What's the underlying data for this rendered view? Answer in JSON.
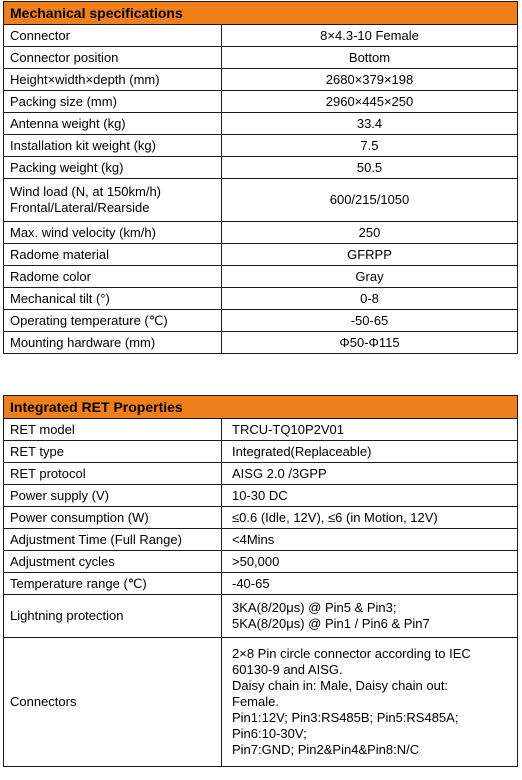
{
  "mechanical": {
    "title": "Mechanical specifications",
    "rows": [
      {
        "label": "Connector",
        "value": "8×4.3-10 Female"
      },
      {
        "label": "Connector position",
        "value": "Bottom"
      },
      {
        "label": "Height×width×depth (mm)",
        "value": "2680×379×198"
      },
      {
        "label": "Packing size (mm)",
        "value": "2960×445×250"
      },
      {
        "label": "Antenna weight (kg)",
        "value": "33.4"
      },
      {
        "label": "Installation kit weight (kg)",
        "value": "7.5"
      },
      {
        "label": "Packing weight (kg)",
        "value": "50.5"
      },
      {
        "label_lines": [
          "Wind load (N, at 150km/h)",
          "Frontal/Lateral/Rearside"
        ],
        "value": "600/215/1050"
      },
      {
        "label": "Max. wind velocity (km/h)",
        "value": "250"
      },
      {
        "label": "Radome material",
        "value": "GFRPP"
      },
      {
        "label": "Radome color",
        "value": "Gray"
      },
      {
        "label": "Mechanical tilt (°)",
        "value": "0-8"
      },
      {
        "label": "Operating temperature (℃)",
        "value": "-50-65"
      },
      {
        "label": "Mounting hardware (mm)",
        "value": "Φ50-Φ115"
      }
    ]
  },
  "ret": {
    "title": "Integrated RET Properties",
    "rows": [
      {
        "label": "RET model",
        "value": "TRCU-TQ10P2V01"
      },
      {
        "label": "RET type",
        "value": "Integrated(Replaceable)"
      },
      {
        "label": "RET protocol",
        "value": "AISG 2.0 /3GPP"
      },
      {
        "label": "Power supply (V)",
        "value": "10-30 DC"
      },
      {
        "label": "Power consumption (W)",
        "value": "≤0.6 (Idle, 12V), ≤6 (in Motion, 12V)"
      },
      {
        "label": "Adjustment Time (Full Range)",
        "value": "<4Mins"
      },
      {
        "label": "Adjustment cycles",
        "value": ">50,000"
      },
      {
        "label": "Temperature range (℃)",
        "value": "-40-65"
      },
      {
        "label": "Lightning protection",
        "value_lines": [
          "3KA(8/20μs) @ Pin5 & Pin3;",
          "5KA(8/20μs) @ Pin1 / Pin6 & Pin7"
        ]
      },
      {
        "label": "Connectors",
        "value_lines": [
          "2×8 Pin circle connector according to IEC",
          "60130-9 and AISG.",
          "Daisy chain in: Male, Daisy chain out:",
          "Female.",
          "Pin1:12V; Pin3:RS485B; Pin5:RS485A;",
          "Pin6:10-30V;",
          "Pin7:GND; Pin2&Pin4&Pin8:N/C"
        ]
      }
    ]
  }
}
